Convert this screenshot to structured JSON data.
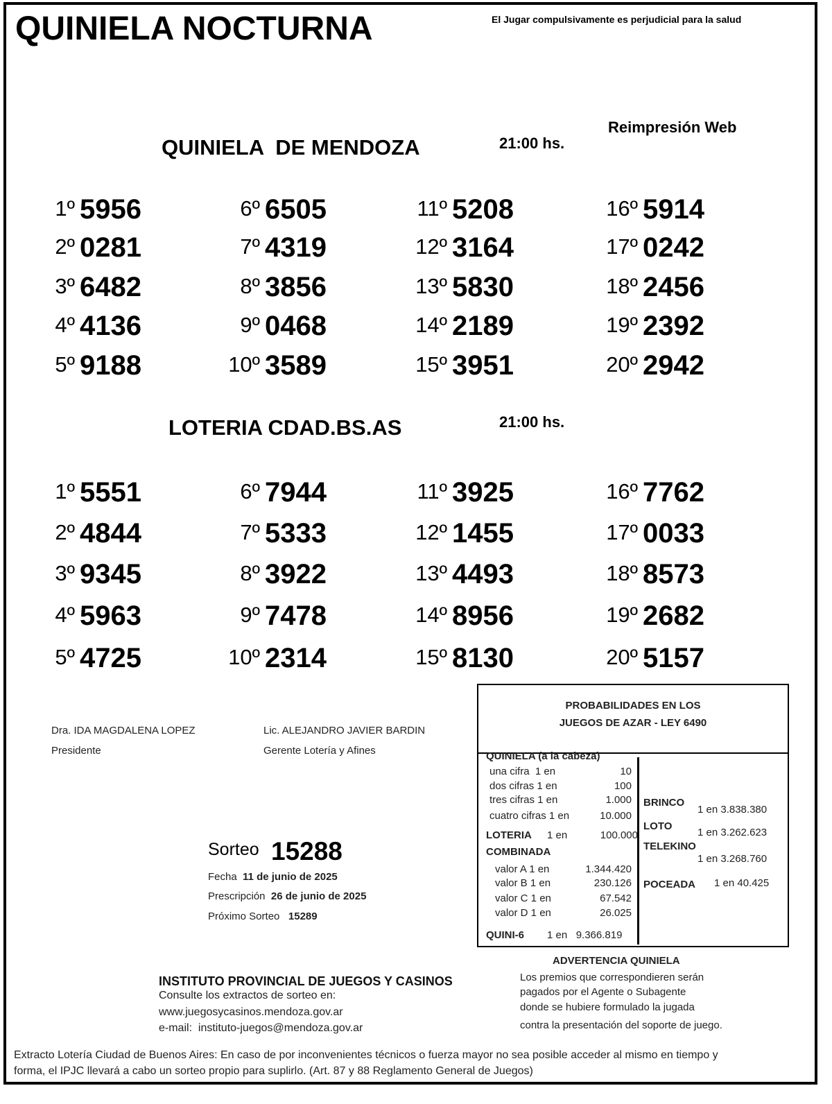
{
  "header": {
    "title": "QUINIELA NOCTURNA",
    "warning": "El Jugar compulsivamente es perjudicial para la salud",
    "reprint": "Reimpresión Web"
  },
  "draws": [
    {
      "name": "QUINIELA  DE MENDOZA",
      "time": "21:00 hs.",
      "results": [
        {
          "pos": "1º",
          "num": "5956"
        },
        {
          "pos": "2º",
          "num": "0281"
        },
        {
          "pos": "3º",
          "num": "6482"
        },
        {
          "pos": "4º",
          "num": "4136"
        },
        {
          "pos": "5º",
          "num": "9188"
        },
        {
          "pos": "6º",
          "num": "6505"
        },
        {
          "pos": "7º",
          "num": "4319"
        },
        {
          "pos": "8º",
          "num": "3856"
        },
        {
          "pos": "9º",
          "num": "0468"
        },
        {
          "pos": "10º",
          "num": "3589"
        },
        {
          "pos": "11º",
          "num": "5208"
        },
        {
          "pos": "12º",
          "num": "3164"
        },
        {
          "pos": "13º",
          "num": "5830"
        },
        {
          "pos": "14º",
          "num": "2189"
        },
        {
          "pos": "15º",
          "num": "3951"
        },
        {
          "pos": "16º",
          "num": "5914"
        },
        {
          "pos": "17º",
          "num": "0242"
        },
        {
          "pos": "18º",
          "num": "2456"
        },
        {
          "pos": "19º",
          "num": "2392"
        },
        {
          "pos": "20º",
          "num": "2942"
        }
      ]
    },
    {
      "name": "LOTERIA CDAD.BS.AS",
      "time": "21:00 hs.",
      "results": [
        {
          "pos": "1º",
          "num": "5551"
        },
        {
          "pos": "2º",
          "num": "4844"
        },
        {
          "pos": "3º",
          "num": "9345"
        },
        {
          "pos": "4º",
          "num": "5963"
        },
        {
          "pos": "5º",
          "num": "4725"
        },
        {
          "pos": "6º",
          "num": "7944"
        },
        {
          "pos": "7º",
          "num": "5333"
        },
        {
          "pos": "8º",
          "num": "3922"
        },
        {
          "pos": "9º",
          "num": "7478"
        },
        {
          "pos": "10º",
          "num": "2314"
        },
        {
          "pos": "11º",
          "num": "3925"
        },
        {
          "pos": "12º",
          "num": "1455"
        },
        {
          "pos": "13º",
          "num": "4493"
        },
        {
          "pos": "14º",
          "num": "8956"
        },
        {
          "pos": "15º",
          "num": "8130"
        },
        {
          "pos": "16º",
          "num": "7762"
        },
        {
          "pos": "17º",
          "num": "0033"
        },
        {
          "pos": "18º",
          "num": "8573"
        },
        {
          "pos": "19º",
          "num": "2682"
        },
        {
          "pos": "20º",
          "num": "5157"
        }
      ]
    }
  ],
  "signatures": [
    {
      "name": "Dra. IDA MAGDALENA LOPEZ",
      "role": "Presidente"
    },
    {
      "name": "Lic. ALEJANDRO JAVIER BARDIN",
      "role": "Gerente Lotería y Afines"
    }
  ],
  "sorteo": {
    "label": "Sorteo",
    "number": "15288",
    "fecha_label": "Fecha",
    "fecha": "11 de junio de 2025",
    "prescripcion_label": "Prescripción",
    "prescripcion": "26 de junio de 2025",
    "proximo_label": "Próximo Sorteo",
    "proximo": "15289"
  },
  "probabilities": {
    "title1": "PROBABILIDADES EN LOS",
    "title2": "JUEGOS DE AZAR - LEY 6490",
    "quiniela_title": "QUINIELA (a la cabeza)",
    "quiniela": [
      {
        "label": "una cifra  1 en",
        "value": "10"
      },
      {
        "label": "dos cifras 1 en",
        "value": "100"
      },
      {
        "label": "tres cifras 1 en",
        "value": "1.000"
      },
      {
        "label": "cuatro cifras 1 en",
        "value": "10.000"
      }
    ],
    "loteria_label": "LOTERIA",
    "loteria_en": "1 en",
    "loteria_value": "100.000",
    "combinada_title": "COMBINADA",
    "combinada": [
      {
        "label": "valor A 1 en",
        "value": "1.344.420"
      },
      {
        "label": "valor B 1 en",
        "value": "230.126"
      },
      {
        "label": "valor C 1 en",
        "value": "67.542"
      },
      {
        "label": "valor D 1 en",
        "value": "26.025"
      }
    ],
    "quini6_label": "QUINI-6",
    "quini6_value": "1 en   9.366.819",
    "brinco_label": "BRINCO",
    "brinco_value": "1 en 3.838.380",
    "loto_label": "LOTO",
    "loto_value": "1 en 3.262.623",
    "telekino_label": "TELEKINO",
    "telekino_value": "1 en 3.268.760",
    "poceada_label": "POCEADA",
    "poceada_value": "1 en 40.425"
  },
  "institute": {
    "name": "INSTITUTO PROVINCIAL DE JUEGOS Y CASINOS",
    "consult": "Consulte los extractos de sorteo en:",
    "web": "www.juegosycasinos.mendoza.gov.ar",
    "email": "e-mail:  instituto-juegos@mendoza.gov.ar"
  },
  "advertencia": {
    "title": "ADVERTENCIA QUINIELA",
    "lines": [
      "Los premios que correspondieren serán",
      "pagados por el Agente o Subagente",
      "donde se hubiere formulado la jugada",
      "contra la presentación del soporte de juego."
    ]
  },
  "footer": {
    "line1": "Extracto Lotería Ciudad de Buenos Aires: En caso de por inconvenientes técnicos o fuerza mayor no sea posible acceder al mismo en tiempo y",
    "line2": "forma, el IPJC llevará a cabo un sorteo propio para suplirlo. (Art. 87 y 88 Reglamento General de Juegos)"
  }
}
